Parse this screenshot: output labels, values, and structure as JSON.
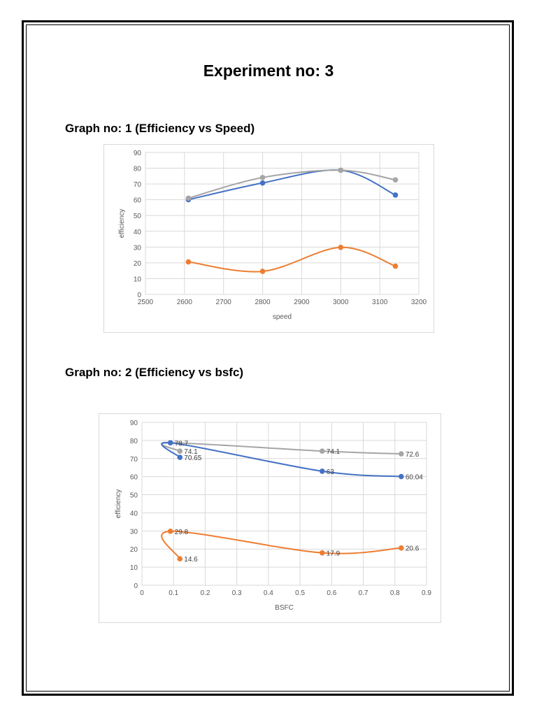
{
  "title": "Experiment no: 3",
  "graph1_heading": "Graph no: 1 (Efficiency vs Speed)",
  "graph2_heading": "Graph no: 2 (Efficiency vs bsfc)",
  "chart_data": [
    {
      "type": "line",
      "smooth": true,
      "xlabel": "speed",
      "ylabel": "efficiency",
      "xlim": [
        2500,
        3200
      ],
      "ylim": [
        0,
        90
      ],
      "xticks": [
        2500,
        2600,
        2700,
        2800,
        2900,
        3000,
        3100,
        3200
      ],
      "yticks": [
        0,
        10,
        20,
        30,
        40,
        50,
        60,
        70,
        80,
        90
      ],
      "grid": true,
      "legend": "none",
      "series": [
        {
          "color": "#4472c4",
          "points": [
            [
              2610,
              60.04
            ],
            [
              2800,
              70.65
            ],
            [
              3000,
              78.7
            ],
            [
              3140,
              63
            ]
          ]
        },
        {
          "color": "#ed7d31",
          "points": [
            [
              2610,
              20.6
            ],
            [
              2800,
              14.6
            ],
            [
              3000,
              29.8
            ],
            [
              3140,
              17.9
            ]
          ]
        },
        {
          "color": "#a5a5a5",
          "points": [
            [
              2610,
              61
            ],
            [
              2800,
              74.1
            ],
            [
              3000,
              78.7
            ],
            [
              3140,
              72.6
            ]
          ]
        }
      ]
    },
    {
      "type": "scatter",
      "smooth": true,
      "xlabel": "BSFC",
      "ylabel": "efficiency",
      "xlim": [
        0,
        0.9
      ],
      "ylim": [
        0,
        90
      ],
      "xticks": [
        0,
        0.1,
        0.2,
        0.3,
        0.4,
        0.5,
        0.6,
        0.7,
        0.8,
        0.9
      ],
      "yticks": [
        0,
        10,
        20,
        30,
        40,
        50,
        60,
        70,
        80,
        90
      ],
      "grid": true,
      "legend": "none",
      "series": [
        {
          "color": "#a5a5a5",
          "points": [
            [
              0.12,
              74.1
            ],
            [
              0.09,
              78.7
            ],
            [
              0.57,
              74.1
            ],
            [
              0.82,
              72.6
            ]
          ],
          "labels": [
            "74.1",
            "",
            "74.1",
            "72.6"
          ]
        },
        {
          "color": "#4472c4",
          "points": [
            [
              0.12,
              70.65
            ],
            [
              0.09,
              78.7
            ],
            [
              0.57,
              63
            ],
            [
              0.82,
              60.04
            ]
          ],
          "labels": [
            "70.65",
            "78.7",
            "63",
            "60.04"
          ]
        },
        {
          "color": "#ed7d31",
          "points": [
            [
              0.12,
              14.6
            ],
            [
              0.09,
              29.8
            ],
            [
              0.57,
              17.9
            ],
            [
              0.82,
              20.6
            ]
          ],
          "labels": [
            "14.6",
            "29.8",
            "17.9",
            "20.6"
          ]
        }
      ]
    }
  ]
}
